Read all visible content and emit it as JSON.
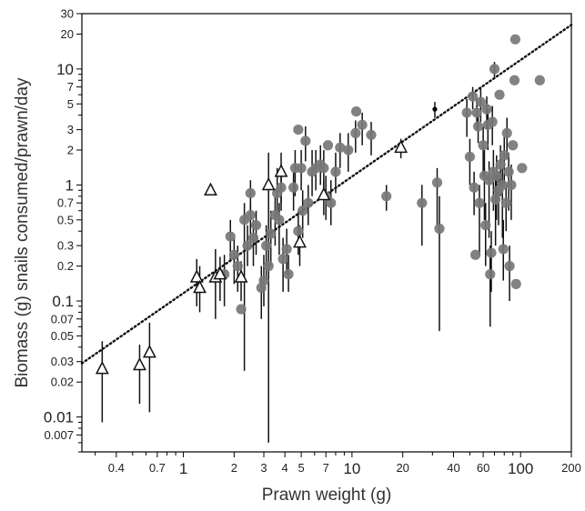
{
  "chart_data": {
    "type": "scatter",
    "title": "",
    "xlabel": "Prawn weight (g)",
    "ylabel": "Biomass (g) snails consumed/prawn/day",
    "xscale": "log",
    "yscale": "log",
    "xlim": [
      0.25,
      200
    ],
    "ylim": [
      0.005,
      30
    ],
    "grid": false,
    "legend": "none",
    "x_ticks": [
      {
        "value": 0.4,
        "label": "0.4"
      },
      {
        "value": 0.7,
        "label": "0.7"
      },
      {
        "value": 1,
        "label": "1"
      },
      {
        "value": 2,
        "label": "2"
      },
      {
        "value": 3,
        "label": "3"
      },
      {
        "value": 4,
        "label": "4"
      },
      {
        "value": 5,
        "label": "5"
      },
      {
        "value": 7,
        "label": "7"
      },
      {
        "value": 10,
        "label": "10"
      },
      {
        "value": 20,
        "label": "20"
      },
      {
        "value": 40,
        "label": "40"
      },
      {
        "value": 60,
        "label": "60"
      },
      {
        "value": 100,
        "label": "100"
      },
      {
        "value": 200,
        "label": "200"
      }
    ],
    "y_ticks": [
      {
        "value": 30,
        "label": "30"
      },
      {
        "value": 20,
        "label": "20"
      },
      {
        "value": 10,
        "label": "10"
      },
      {
        "value": 7,
        "label": "7"
      },
      {
        "value": 5,
        "label": "5"
      },
      {
        "value": 3,
        "label": "3"
      },
      {
        "value": 2,
        "label": "2"
      },
      {
        "value": 1,
        "label": "1"
      },
      {
        "value": 0.7,
        "label": "0.7"
      },
      {
        "value": 0.5,
        "label": "0.5"
      },
      {
        "value": 0.3,
        "label": "0.3"
      },
      {
        "value": 0.2,
        "label": "0.2"
      },
      {
        "value": 0.1,
        "label": "0.1"
      },
      {
        "value": 0.07,
        "label": "0.07"
      },
      {
        "value": 0.05,
        "label": "0.05"
      },
      {
        "value": 0.03,
        "label": "0.03"
      },
      {
        "value": 0.02,
        "label": "0.02"
      },
      {
        "value": 0.01,
        "label": "0.01"
      },
      {
        "value": 0.007,
        "label": "0.007"
      }
    ],
    "fit_line": {
      "style": "dotted",
      "points": [
        [
          0.25,
          0.029
        ],
        [
          200,
          24
        ]
      ]
    },
    "series": [
      {
        "marker": "circle",
        "color": "#777777",
        "points": [
          {
            "x": 1.75,
            "y": 0.17,
            "lo": 0.09,
            "hi": 0.25
          },
          {
            "x": 1.9,
            "y": 0.36,
            "lo": 0.22,
            "hi": 0.5
          },
          {
            "x": 2.0,
            "y": 0.25,
            "lo": 0.14,
            "hi": 0.35
          },
          {
            "x": 2.1,
            "y": 0.2,
            "lo": 0.12,
            "hi": 0.3
          },
          {
            "x": 2.2,
            "y": 0.085
          },
          {
            "x": 2.3,
            "y": 0.5,
            "lo": 0.025,
            "hi": 0.7
          },
          {
            "x": 2.4,
            "y": 0.3,
            "lo": 0.2,
            "hi": 0.45
          },
          {
            "x": 2.5,
            "y": 0.85,
            "lo": 0.6,
            "hi": 1.1
          },
          {
            "x": 2.5,
            "y": 0.55,
            "lo": 0.3,
            "hi": 0.7
          },
          {
            "x": 2.6,
            "y": 0.35,
            "lo": 0.2,
            "hi": 0.5
          },
          {
            "x": 2.7,
            "y": 0.45,
            "lo": 0.25,
            "hi": 0.6
          },
          {
            "x": 2.9,
            "y": 0.13,
            "lo": 0.07,
            "hi": 0.2
          },
          {
            "x": 3.0,
            "y": 0.15,
            "lo": 0.09,
            "hi": 0.25
          },
          {
            "x": 3.1,
            "y": 0.3,
            "lo": 0.15,
            "hi": 0.45
          },
          {
            "x": 3.2,
            "y": 0.2,
            "lo": 0.006,
            "hi": 0.4
          },
          {
            "x": 3.3,
            "y": 0.38,
            "lo": 0.2,
            "hi": 0.6
          },
          {
            "x": 3.5,
            "y": 0.55,
            "lo": 0.3,
            "hi": 0.8
          },
          {
            "x": 3.6,
            "y": 0.85,
            "lo": 0.5,
            "hi": 1.4
          },
          {
            "x": 3.7,
            "y": 0.5,
            "lo": 0.25,
            "hi": 0.7
          },
          {
            "x": 3.8,
            "y": 0.95,
            "lo": 0.6,
            "hi": 1.5
          },
          {
            "x": 3.9,
            "y": 0.23,
            "lo": 0.12,
            "hi": 0.35
          },
          {
            "x": 4.1,
            "y": 0.28,
            "lo": 0.17,
            "hi": 0.42
          },
          {
            "x": 4.2,
            "y": 0.17,
            "lo": 0.12,
            "hi": 0.25
          },
          {
            "x": 4.5,
            "y": 0.95,
            "lo": 0.6,
            "hi": 1.3
          },
          {
            "x": 4.6,
            "y": 1.4,
            "lo": 0.8,
            "hi": 2.0
          },
          {
            "x": 4.8,
            "y": 0.4,
            "lo": 0.25,
            "hi": 0.6
          },
          {
            "x": 4.8,
            "y": 3.0
          },
          {
            "x": 5.0,
            "y": 1.4,
            "lo": 0.9,
            "hi": 2.0
          },
          {
            "x": 5.1,
            "y": 0.6,
            "lo": 0.35,
            "hi": 0.9
          },
          {
            "x": 5.3,
            "y": 2.4,
            "lo": 1.6,
            "hi": 3.2
          },
          {
            "x": 5.5,
            "y": 0.7,
            "lo": 0.45,
            "hi": 1.0
          },
          {
            "x": 5.8,
            "y": 1.3,
            "lo": 0.8,
            "hi": 2.0
          },
          {
            "x": 6.1,
            "y": 1.4,
            "lo": 0.9,
            "hi": 2.0
          },
          {
            "x": 6.5,
            "y": 1.5,
            "lo": 1.0,
            "hi": 2.2
          },
          {
            "x": 6.8,
            "y": 1.4,
            "lo": 0.9,
            "hi": 2.0
          },
          {
            "x": 7.0,
            "y": 0.8,
            "lo": 0.5,
            "hi": 1.2
          },
          {
            "x": 7.2,
            "y": 2.2
          },
          {
            "x": 7.5,
            "y": 0.7,
            "lo": 0.45,
            "hi": 1.1
          },
          {
            "x": 8.0,
            "y": 1.3,
            "lo": 0.85,
            "hi": 1.9
          },
          {
            "x": 8.5,
            "y": 2.1,
            "lo": 1.4,
            "hi": 2.8
          },
          {
            "x": 9.5,
            "y": 2.0,
            "lo": 1.3,
            "hi": 2.8
          },
          {
            "x": 10.5,
            "y": 2.8,
            "lo": 1.9,
            "hi": 3.6
          },
          {
            "x": 10.6,
            "y": 4.3
          },
          {
            "x": 11.5,
            "y": 3.3,
            "lo": 2.2,
            "hi": 4.2
          },
          {
            "x": 13.0,
            "y": 2.7,
            "lo": 1.8,
            "hi": 3.5
          },
          {
            "x": 16.0,
            "y": 0.8,
            "lo": 0.6,
            "hi": 1.0
          },
          {
            "x": 26.0,
            "y": 0.7,
            "lo": 0.3,
            "hi": 1.0
          },
          {
            "x": 32.0,
            "y": 1.05,
            "lo": 0.45,
            "hi": 1.4
          },
          {
            "x": 33.0,
            "y": 0.42,
            "lo": 0.055,
            "hi": 0.8
          },
          {
            "x": 48.0,
            "y": 4.2,
            "lo": 2.6,
            "hi": 5.5
          },
          {
            "x": 50.0,
            "y": 1.75,
            "lo": 1.0,
            "hi": 2.5
          },
          {
            "x": 52.0,
            "y": 5.8,
            "lo": 4.5,
            "hi": 7.0
          },
          {
            "x": 53.0,
            "y": 0.95,
            "lo": 0.55,
            "hi": 1.3
          },
          {
            "x": 54.0,
            "y": 0.25
          },
          {
            "x": 55.0,
            "y": 4.2,
            "lo": 3.0,
            "hi": 5.5
          },
          {
            "x": 56.0,
            "y": 3.2,
            "lo": 2.3,
            "hi": 4.0
          },
          {
            "x": 57.0,
            "y": 0.7,
            "lo": 0.25,
            "hi": 1.0
          },
          {
            "x": 58.0,
            "y": 5.2,
            "lo": 3.5,
            "hi": 7.0
          },
          {
            "x": 60.0,
            "y": 2.2,
            "lo": 1.2,
            "hi": 3.2
          },
          {
            "x": 61.0,
            "y": 1.2,
            "lo": 0.5,
            "hi": 2.0
          },
          {
            "x": 62.0,
            "y": 0.45,
            "lo": 0.2,
            "hi": 0.7
          },
          {
            "x": 63.0,
            "y": 4.5,
            "lo": 3.0,
            "hi": 5.8
          },
          {
            "x": 64.0,
            "y": 3.3,
            "lo": 2.0,
            "hi": 4.5
          },
          {
            "x": 65.0,
            "y": 1.1,
            "lo": 0.35,
            "hi": 1.6
          },
          {
            "x": 66.0,
            "y": 0.17,
            "lo": 0.06,
            "hi": 0.3
          },
          {
            "x": 67.0,
            "y": 0.26,
            "lo": 0.12,
            "hi": 0.4
          },
          {
            "x": 68.0,
            "y": 3.5,
            "lo": 2.2,
            "hi": 4.8
          },
          {
            "x": 69.0,
            "y": 1.3,
            "lo": 0.6,
            "hi": 2.0
          },
          {
            "x": 70.0,
            "y": 10.0,
            "lo": 8.5,
            "hi": 11.5
          },
          {
            "x": 71.0,
            "y": 0.75,
            "lo": 0.3,
            "hi": 1.2
          },
          {
            "x": 72.0,
            "y": 1.2,
            "lo": 0.5,
            "hi": 1.8
          },
          {
            "x": 74.0,
            "y": 0.9,
            "lo": 0.45,
            "hi": 1.3
          },
          {
            "x": 75.0,
            "y": 6.0
          },
          {
            "x": 76.0,
            "y": 1.5,
            "lo": 0.8,
            "hi": 2.2
          },
          {
            "x": 78.0,
            "y": 1.0,
            "lo": 0.35,
            "hi": 1.4
          },
          {
            "x": 79.0,
            "y": 0.28,
            "lo": 0.15,
            "hi": 0.5
          },
          {
            "x": 80.0,
            "y": 1.8,
            "lo": 1.0,
            "hi": 2.6
          },
          {
            "x": 82.0,
            "y": 0.7,
            "lo": 0.4,
            "hi": 1.0
          },
          {
            "x": 83.0,
            "y": 2.8,
            "lo": 1.7,
            "hi": 3.8
          },
          {
            "x": 85.0,
            "y": 1.3,
            "lo": 0.6,
            "hi": 1.9
          },
          {
            "x": 86.0,
            "y": 0.2,
            "lo": 0.1,
            "hi": 0.3
          },
          {
            "x": 88.0,
            "y": 1.0,
            "lo": 0.5,
            "hi": 1.5
          },
          {
            "x": 90.0,
            "y": 2.2
          },
          {
            "x": 92.0,
            "y": 8.0
          },
          {
            "x": 93.0,
            "y": 18.0
          },
          {
            "x": 94.0,
            "y": 0.14
          },
          {
            "x": 102.0,
            "y": 1.4
          },
          {
            "x": 130.0,
            "y": 8.0
          }
        ]
      },
      {
        "marker": "triangle",
        "color": "#111111",
        "points": [
          {
            "x": 0.33,
            "y": 0.026,
            "lo": 0.009,
            "hi": 0.045
          },
          {
            "x": 0.55,
            "y": 0.028,
            "lo": 0.013,
            "hi": 0.042
          },
          {
            "x": 0.63,
            "y": 0.036,
            "lo": 0.011,
            "hi": 0.065
          },
          {
            "x": 1.2,
            "y": 0.16,
            "lo": 0.09,
            "hi": 0.23
          },
          {
            "x": 1.25,
            "y": 0.13,
            "lo": 0.08,
            "hi": 0.2
          },
          {
            "x": 1.45,
            "y": 0.9
          },
          {
            "x": 1.55,
            "y": 0.16,
            "lo": 0.07,
            "hi": 0.28
          },
          {
            "x": 1.65,
            "y": 0.17,
            "lo": 0.1,
            "hi": 0.24
          },
          {
            "x": 2.2,
            "y": 0.16,
            "lo": 0.1,
            "hi": 0.22
          },
          {
            "x": 3.2,
            "y": 1.0,
            "lo": 0.35,
            "hi": 1.9
          },
          {
            "x": 3.8,
            "y": 1.3,
            "lo": 0.7,
            "hi": 1.9
          },
          {
            "x": 4.9,
            "y": 0.32,
            "lo": 0.2,
            "hi": 0.45
          },
          {
            "x": 6.8,
            "y": 0.82,
            "lo": 0.55,
            "hi": 1.1
          },
          {
            "x": 19.5,
            "y": 2.1,
            "lo": 1.7,
            "hi": 2.5
          }
        ]
      },
      {
        "marker": "small-dot",
        "color": "#000000",
        "points": [
          {
            "x": 31.0,
            "y": 4.5,
            "lo": 3.8,
            "hi": 5.2
          }
        ]
      }
    ]
  }
}
